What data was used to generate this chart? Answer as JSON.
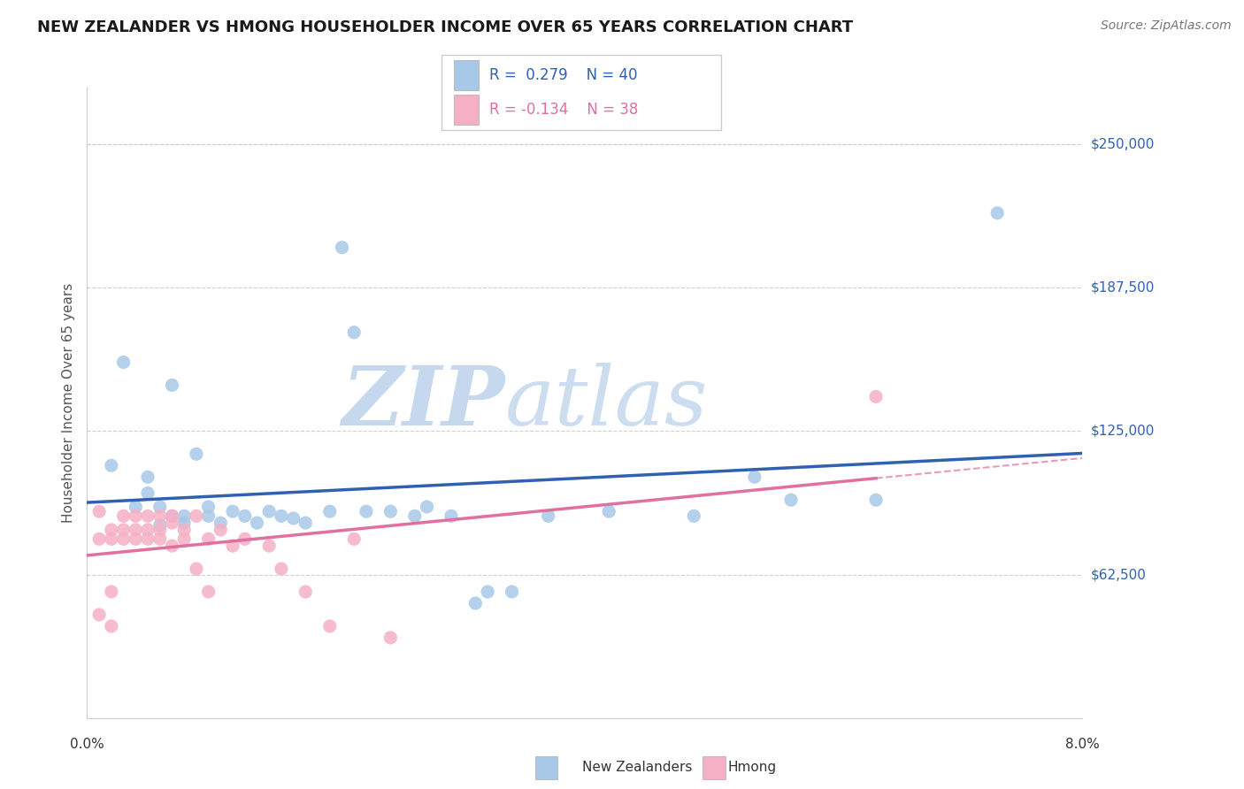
{
  "title": "NEW ZEALANDER VS HMONG HOUSEHOLDER INCOME OVER 65 YEARS CORRELATION CHART",
  "source": "Source: ZipAtlas.com",
  "ylabel": "Householder Income Over 65 years",
  "ytick_labels": [
    "$62,500",
    "$125,000",
    "$187,500",
    "$250,000"
  ],
  "ytick_values": [
    62500,
    125000,
    187500,
    250000
  ],
  "ymin": 0,
  "ymax": 275000,
  "xmin": 0.0,
  "xmax": 0.082,
  "color_nz": "#a8c8e8",
  "color_hmong": "#f5b0c5",
  "color_nz_line": "#3060b0",
  "color_hmong_line": "#e070a0",
  "background_color": "#ffffff",
  "grid_color": "#cccccc",
  "nz_x": [
    0.002,
    0.003,
    0.004,
    0.005,
    0.005,
    0.006,
    0.006,
    0.007,
    0.007,
    0.008,
    0.008,
    0.009,
    0.01,
    0.01,
    0.011,
    0.012,
    0.013,
    0.014,
    0.015,
    0.016,
    0.017,
    0.018,
    0.02,
    0.021,
    0.022,
    0.023,
    0.025,
    0.027,
    0.028,
    0.03,
    0.032,
    0.033,
    0.035,
    0.038,
    0.043,
    0.05,
    0.055,
    0.058,
    0.065,
    0.075
  ],
  "nz_y": [
    110000,
    155000,
    92000,
    105000,
    98000,
    84000,
    92000,
    145000,
    88000,
    88000,
    85000,
    115000,
    92000,
    88000,
    85000,
    90000,
    88000,
    85000,
    90000,
    88000,
    87000,
    85000,
    90000,
    205000,
    168000,
    90000,
    90000,
    88000,
    92000,
    88000,
    50000,
    55000,
    55000,
    88000,
    90000,
    88000,
    105000,
    95000,
    95000,
    220000
  ],
  "hmong_x": [
    0.001,
    0.001,
    0.002,
    0.002,
    0.002,
    0.003,
    0.003,
    0.003,
    0.004,
    0.004,
    0.004,
    0.005,
    0.005,
    0.005,
    0.006,
    0.006,
    0.006,
    0.007,
    0.007,
    0.007,
    0.008,
    0.008,
    0.009,
    0.009,
    0.01,
    0.01,
    0.011,
    0.012,
    0.013,
    0.015,
    0.016,
    0.018,
    0.02,
    0.022,
    0.025,
    0.065,
    0.001,
    0.002
  ],
  "hmong_y": [
    78000,
    90000,
    82000,
    78000,
    55000,
    88000,
    82000,
    78000,
    88000,
    82000,
    78000,
    88000,
    82000,
    78000,
    88000,
    82000,
    78000,
    88000,
    85000,
    75000,
    82000,
    78000,
    88000,
    65000,
    78000,
    55000,
    82000,
    75000,
    78000,
    75000,
    65000,
    55000,
    40000,
    78000,
    35000,
    140000,
    45000,
    40000
  ],
  "legend_r1": "R =  0.279",
  "legend_n1": "N = 40",
  "legend_r2": "R = -0.134",
  "legend_n2": "N = 38"
}
